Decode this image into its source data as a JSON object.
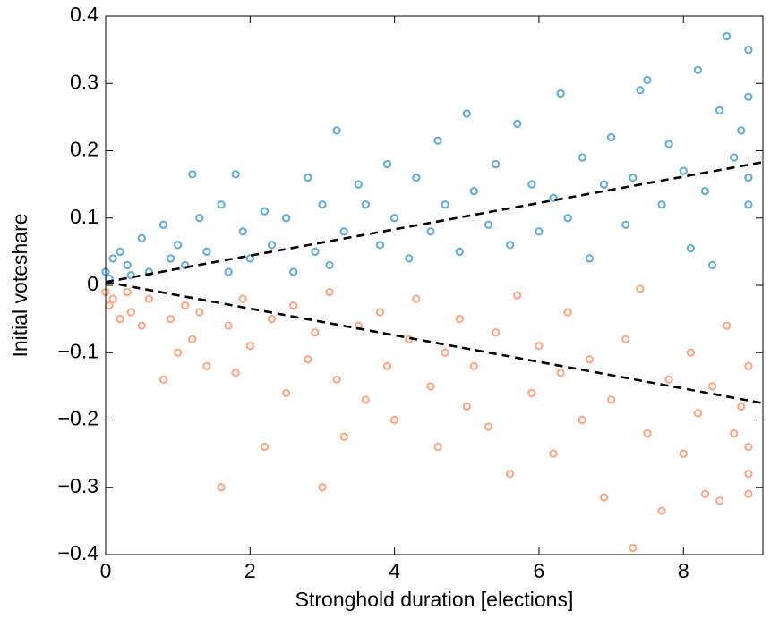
{
  "chart_data": {
    "type": "scatter",
    "x_label": "Stronghold duration [elections]",
    "y_label": "Initial voteshare",
    "xlim": [
      0,
      9.1
    ],
    "ylim": [
      -0.4,
      0.4
    ],
    "xticks": [
      0,
      2,
      4,
      6,
      8
    ],
    "yticks": [
      {
        "value": -0.4,
        "label": "−0.4"
      },
      {
        "value": -0.3,
        "label": "−0.3"
      },
      {
        "value": -0.2,
        "label": "−0.2"
      },
      {
        "value": -0.1,
        "label": "−0.1"
      },
      0,
      0.1,
      0.2,
      0.3,
      0.4
    ],
    "series": [
      {
        "color": "#6baed6",
        "x": [
          0,
          0.05,
          0.1,
          0.2,
          0.3,
          0.35,
          0.5,
          0.6,
          0.8,
          0.9,
          1.0,
          1.1,
          1.2,
          1.3,
          1.4,
          1.6,
          1.7,
          1.8,
          1.9,
          2.0,
          2.2,
          2.3,
          2.5,
          2.6,
          2.8,
          2.9,
          3.0,
          3.1,
          3.2,
          3.3,
          3.5,
          3.6,
          3.8,
          3.9,
          4.0,
          4.2,
          4.3,
          4.5,
          4.6,
          4.7,
          4.9,
          5.0,
          5.1,
          5.3,
          5.4,
          5.6,
          5.7,
          5.9,
          6.0,
          6.2,
          6.3,
          6.4,
          6.6,
          6.7,
          6.9,
          7.0,
          7.2,
          7.3,
          7.4,
          7.5,
          7.7,
          7.8,
          8.0,
          8.1,
          8.2,
          8.3,
          8.4,
          8.5,
          8.6,
          8.7,
          8.8,
          8.9,
          8.9,
          8.9,
          8.9
        ],
        "values": [
          0.02,
          0.01,
          0.04,
          0.05,
          0.03,
          0.015,
          0.07,
          0.02,
          0.09,
          0.04,
          0.06,
          0.03,
          0.165,
          0.1,
          0.05,
          0.12,
          0.02,
          0.165,
          0.08,
          0.04,
          0.11,
          0.06,
          0.1,
          0.02,
          0.16,
          0.05,
          0.12,
          0.03,
          0.23,
          0.08,
          0.15,
          0.12,
          0.06,
          0.18,
          0.1,
          0.04,
          0.16,
          0.08,
          0.215,
          0.12,
          0.05,
          0.255,
          0.14,
          0.09,
          0.18,
          0.06,
          0.24,
          0.15,
          0.08,
          0.13,
          0.285,
          0.1,
          0.19,
          0.04,
          0.15,
          0.22,
          0.09,
          0.16,
          0.29,
          0.305,
          0.12,
          0.21,
          0.17,
          0.055,
          0.32,
          0.14,
          0.03,
          0.26,
          0.37,
          0.19,
          0.23,
          0.35,
          0.16,
          0.28,
          0.12
        ]
      },
      {
        "color": "#fcaa8c",
        "x": [
          0,
          0.05,
          0.1,
          0.2,
          0.3,
          0.35,
          0.5,
          0.6,
          0.8,
          0.9,
          1.0,
          1.1,
          1.2,
          1.3,
          1.4,
          1.6,
          1.7,
          1.8,
          1.9,
          2.0,
          2.2,
          2.3,
          2.5,
          2.6,
          2.8,
          2.9,
          3.0,
          3.1,
          3.2,
          3.3,
          3.5,
          3.6,
          3.8,
          3.9,
          4.0,
          4.2,
          4.3,
          4.5,
          4.6,
          4.7,
          4.9,
          5.0,
          5.1,
          5.3,
          5.4,
          5.6,
          5.7,
          5.9,
          6.0,
          6.2,
          6.3,
          6.4,
          6.6,
          6.7,
          6.9,
          7.0,
          7.2,
          7.3,
          7.4,
          7.5,
          7.7,
          7.8,
          8.0,
          8.1,
          8.2,
          8.3,
          8.4,
          8.5,
          8.6,
          8.7,
          8.8,
          8.9,
          8.9,
          8.9,
          8.9
        ],
        "values": [
          -0.01,
          -0.03,
          -0.02,
          -0.05,
          -0.01,
          -0.04,
          -0.06,
          -0.02,
          -0.14,
          -0.05,
          -0.1,
          -0.03,
          -0.08,
          -0.04,
          -0.12,
          -0.3,
          -0.06,
          -0.13,
          -0.02,
          -0.09,
          -0.24,
          -0.05,
          -0.16,
          -0.03,
          -0.11,
          -0.07,
          -0.3,
          -0.01,
          -0.14,
          -0.225,
          -0.06,
          -0.17,
          -0.04,
          -0.12,
          -0.2,
          -0.08,
          -0.02,
          -0.15,
          -0.24,
          -0.1,
          -0.05,
          -0.18,
          -0.12,
          -0.21,
          -0.07,
          -0.28,
          -0.015,
          -0.16,
          -0.09,
          -0.25,
          -0.13,
          -0.04,
          -0.2,
          -0.11,
          -0.315,
          -0.17,
          -0.08,
          -0.39,
          -0.005,
          -0.22,
          -0.335,
          -0.14,
          -0.25,
          -0.1,
          -0.19,
          -0.31,
          -0.15,
          -0.32,
          -0.06,
          -0.22,
          -0.18,
          -0.31,
          -0.12,
          -0.24,
          -0.28
        ]
      }
    ],
    "fit_lines": [
      {
        "color": "#000000",
        "dashed": true,
        "x": [
          0,
          9.1
        ],
        "values": [
          0.005,
          0.183
        ]
      },
      {
        "color": "#000000",
        "dashed": true,
        "x": [
          0,
          9.1
        ],
        "values": [
          0.005,
          -0.175
        ]
      }
    ]
  }
}
